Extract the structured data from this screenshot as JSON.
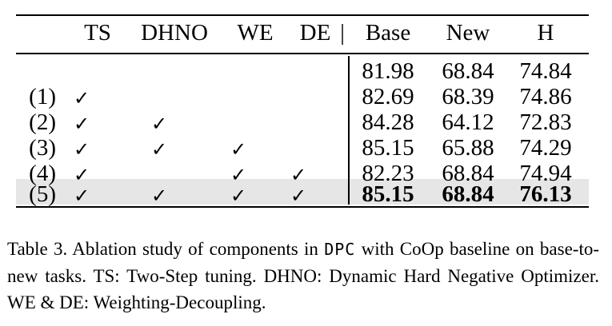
{
  "table": {
    "headers": {
      "ts": "TS",
      "dhno": "DHNO",
      "we": "WE",
      "de": "DE",
      "separator": "|",
      "base": "Base",
      "new": "New",
      "h": "H"
    },
    "rows": [
      {
        "label": "",
        "ts": false,
        "dhno": false,
        "we": false,
        "de": false,
        "base": "81.98",
        "new": "68.84",
        "h": "74.84",
        "bold": false,
        "highlight": false
      },
      {
        "label": "(1)",
        "ts": true,
        "dhno": false,
        "we": false,
        "de": false,
        "base": "82.69",
        "new": "68.39",
        "h": "74.86",
        "bold": false,
        "highlight": false
      },
      {
        "label": "(2)",
        "ts": true,
        "dhno": true,
        "we": false,
        "de": false,
        "base": "84.28",
        "new": "64.12",
        "h": "72.83",
        "bold": false,
        "highlight": false
      },
      {
        "label": "(3)",
        "ts": true,
        "dhno": true,
        "we": true,
        "de": false,
        "base": "85.15",
        "new": "65.88",
        "h": "74.29",
        "bold": false,
        "highlight": false
      },
      {
        "label": "(4)",
        "ts": true,
        "dhno": false,
        "we": true,
        "de": true,
        "base": "82.23",
        "new": "68.84",
        "h": "74.94",
        "bold": false,
        "highlight": false
      },
      {
        "label": "(5)",
        "ts": true,
        "dhno": true,
        "we": true,
        "de": true,
        "base": "85.15",
        "new": "68.84",
        "h": "76.13",
        "bold": true,
        "highlight": true
      }
    ],
    "check_mark": "✓",
    "highlight_color": "#e6e6e6"
  },
  "caption": {
    "part1": "Table 3. Ablation study of components in ",
    "code": "DPC",
    "part2": " with CoOp baseline on base-to-new tasks. TS: Two-Step tuning. DHNO: Dynamic Hard Negative Optimizer. WE & DE: Weighting-Decoupling."
  }
}
